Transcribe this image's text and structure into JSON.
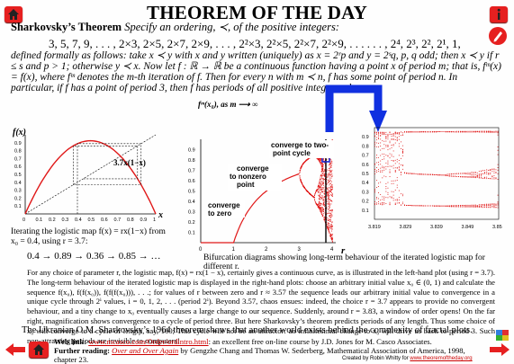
{
  "title": "THEOREM OF THE DAY",
  "header": {
    "name": "Sharkovsky’s Theorem",
    "intro": "Specify an ordering, ≺, of the positive integers:"
  },
  "formula": "3, 5, 7, 9, . . . , 2×3, 2×5, 2×7, 2×9, . . . , 2²×3, 2²×5, 2²×7, 2²×9, . . . . . . , 2⁴, 2³, 2², 2¹, 1,",
  "definition": "defined formally as follows: take x ≺ y with x and y written (uniquely) as x = 2ʳp and y = 2ˢq, p, q odd; then x ≺ y if r ≤ s and p > 1; otherwise y ≺ x. Now let f : ℝ → ℝ be a continuous function having a point x of period m; that is, fᵐ(x) = f(x), where fᵐ denotes the m-th iteration of f. Then for every n with m ≺ n, f has some point of period n. In particular, if f has a point of period 3, then f has periods of all positive integer orders.",
  "left_chart": {
    "ylabel": "f(x)",
    "xlabel": "x",
    "curve_label": "3.7x(1−x)",
    "xticks": [
      "0",
      "0.1",
      "0.2",
      "0.3",
      "0.4",
      "0.5",
      "0.6",
      "0.7",
      "0.8",
      "0.9",
      "1"
    ],
    "yticks": [
      "0.1",
      "0.2",
      "0.3",
      "0.4",
      "0.5",
      "0.6",
      "0.7",
      "0.8",
      "0.9"
    ]
  },
  "caption_left": "Iterating the logistic map f(x) = rx(1−x) from x₀ = 0.4, using r = 3.7:",
  "sequence": "0.4 → 0.89 → 0.36 → 0.85 → …",
  "right_chart": {
    "ylabel": "fᵐ(x₀), as m ⟶ ∞",
    "xlabel": "r",
    "annotations": [
      "converge to zero",
      "converge to nonzero point",
      "converge to two-point cycle"
    ],
    "xticks": [
      "0",
      "1",
      "2",
      "3",
      "4"
    ],
    "yticks": [
      "0.1",
      "0.2",
      "0.3",
      "0.4",
      "0.5",
      "0.6",
      "0.7",
      "0.8",
      "0.9"
    ],
    "zoom_xticks": [
      "3.819",
      "3.829",
      "3.839",
      "3.849",
      "3.859"
    ],
    "zoom_yticks": [
      "0.1",
      "0.2",
      "0.3",
      "0.4",
      "0.5",
      "0.6",
      "0.7",
      "0.8",
      "0.9"
    ]
  },
  "caption_right": "Bifurcation diagrams showing long-term behaviour of the iterated logistic map for different r.",
  "paragraph": "For any choice of parameter r, the logistic map, f(x) = rx(1 − x), certainly gives a continuous curve, as is illustrated in the left-hand plot (using r = 3.7). The long-term behaviour of the iterated logistic map is displayed in the right-hand plots: choose an arbitrary initial value x₀ ∈ (0, 1) and calculate the sequence f(x₀), f(f(x₀)), f(f(f(x₀))), . . .; for values of r between zero and r ≈ 3.57 the sequence leads our arbitrary initial value to convergence in a unique cycle through 2ⁱ values, i = 0, 1, 2, . . . (period 2ⁱ). Beyond 3.57, chaos ensues: indeed, the choice r = 3.7 appears to provide no convergent behaviour, and a tiny change to x₀ eventually causes a large change to our sequence. Suddenly, around r = 3.83, a window of order opens! On the far right, magnification shows convergence to a cycle of period three. But here Sharkovsky’s theorem predicts periods of any length. Thus some choice of x₀ will converge to a cycle of length, say, 100; This cycle will not be an attractor: an infinitesimal change to x₀ will drive us back to period 3. Such non-attracting periods are invisible to computers!",
  "closing": "The Ukranian O.M. Sharkovsky’s 1964 theorem shows that another world exists behind the complexity of fractal plots.",
  "weblink": {
    "label": "Web link:",
    "url": "www.mcasco.com/Order/ordintro.html",
    "rest": ": an excellent free on-line course by J.D. Jones for M. Casco Associates."
  },
  "further": {
    "label": "Further reading:",
    "book": "Over and Over Again",
    "rest": " by Gengzhe Chang and Thomas W. Sederberg, Mathematical Association of America, 1998, chapter 23."
  },
  "credit": {
    "prefix": "Created by Robin Whitty for ",
    "url": "www.theoremoftheday.org"
  },
  "colors": {
    "red": "#e01818",
    "blue": "#1030e0"
  }
}
